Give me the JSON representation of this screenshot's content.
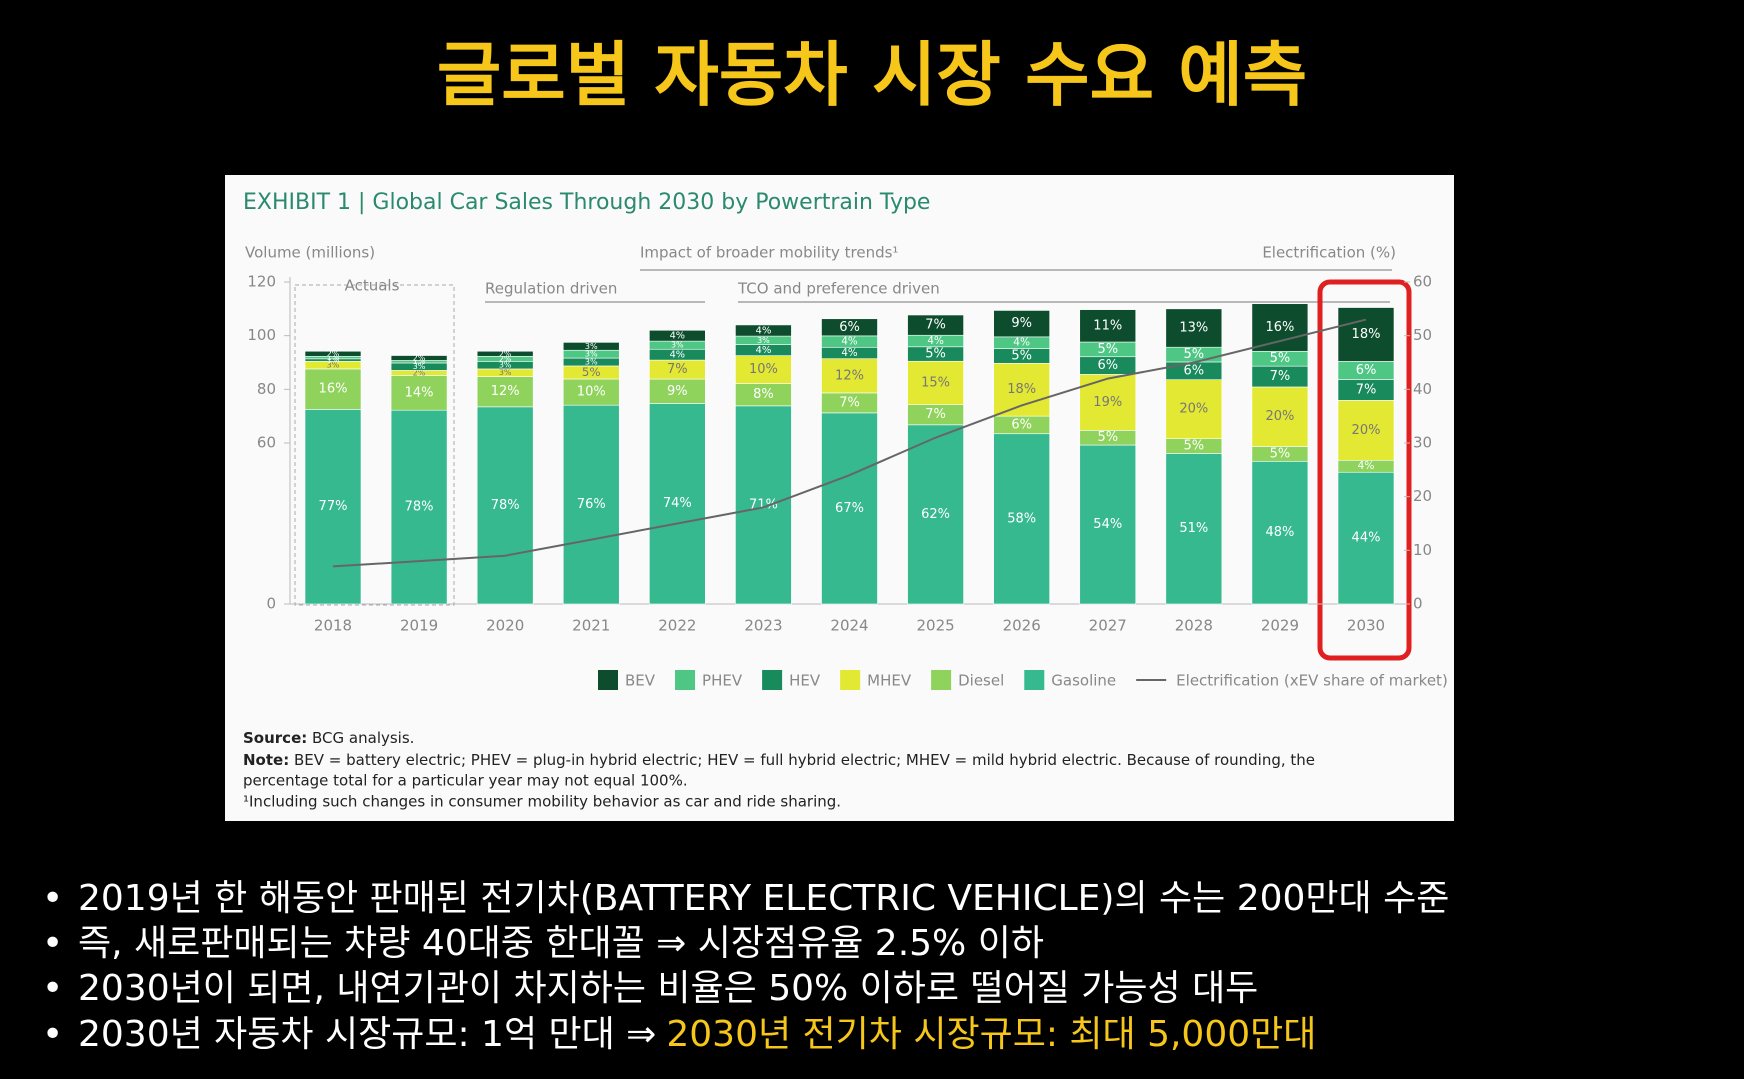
{
  "title": "글로벌 자동차 시장 수요 예측",
  "bullets": [
    "2019년 한 해동안 판매된 전기차(BATTERY ELECTRIC VEHICLE)의 수는 200만대 수준",
    "즉, 새로판매되는 챠량 40대중 한대꼴 ⇒ 시장점유율 2.5% 이하",
    "2030년이 되면, 내연기관이 차지하는 비율은 50% 이하로 떨어질 가능성 대두",
    "2030년 자동차 시장규모: 1억 만대 ⇒",
    "2030년 전기차 시장규모: 최대 5,000만대"
  ],
  "chart_data": {
    "type": "bar",
    "title": "EXHIBIT 1 | Global Car Sales Through 2030 by Powertrain Type",
    "y_label": "Volume (millions)",
    "y2_label": "Electrification (%)",
    "annotations": [
      "Impact of broader mobility trends¹",
      "Actuals",
      "Regulation driven",
      "TCO and preference driven"
    ],
    "categories": [
      "2018",
      "2019",
      "2020",
      "2021",
      "2022",
      "2023",
      "2024",
      "2025",
      "2026",
      "2027",
      "2028",
      "2029",
      "2030"
    ],
    "totals": [
      94.2,
      92.6,
      94.2,
      97.5,
      101,
      104,
      106.3,
      107.7,
      109.4,
      109.7,
      110,
      110.8,
      111.6
    ],
    "series": [
      {
        "name": "BEV",
        "color": "#0d4d2e",
        "values": [
          2,
          2,
          2,
          3,
          4,
          4,
          6,
          7,
          9,
          11,
          13,
          16,
          18
        ],
        "value_labels": [
          "2%",
          "2%",
          "2%",
          "3%",
          "4%",
          "4%",
          "6%",
          "7%",
          "9%",
          "11%",
          "13%",
          "16%",
          "18%"
        ]
      },
      {
        "name": "PHEV",
        "color": "#4ec784",
        "values": [
          1,
          1,
          2,
          3,
          3,
          3,
          4,
          4,
          4,
          5,
          5,
          5,
          6
        ],
        "value_labels": [
          "1%",
          "1%",
          "2%",
          "3%",
          "3%",
          "3%",
          "4%",
          "4%",
          "4%",
          "5%",
          "5%",
          "5%",
          "6%"
        ]
      },
      {
        "name": "HEV",
        "color": "#188a5c",
        "values": [
          1,
          3,
          3,
          3,
          4,
          4,
          4,
          5,
          5,
          6,
          6,
          7,
          7
        ],
        "value_labels": [
          "1%",
          "3%",
          "3%",
          "3%",
          "4%",
          "4%",
          "4%",
          "5%",
          "5%",
          "6%",
          "6%",
          "7%",
          "7%"
        ]
      },
      {
        "name": "MHEV",
        "color": "#e3e833",
        "values": [
          3,
          2,
          3,
          5,
          7,
          10,
          12,
          15,
          18,
          19,
          20,
          20,
          20
        ],
        "value_labels": [
          "3%",
          "2%",
          "3%",
          "5%",
          "7%",
          "10%",
          "12%",
          "15%",
          "18%",
          "19%",
          "20%",
          "20%",
          "20%"
        ]
      },
      {
        "name": "Diesel",
        "color": "#8fd35c",
        "values": [
          16,
          14,
          12,
          10,
          9,
          8,
          7,
          7,
          6,
          5,
          5,
          5,
          4
        ],
        "value_labels": [
          "16%",
          "14%",
          "12%",
          "10%",
          "9%",
          "8%",
          "7%",
          "7%",
          "6%",
          "5%",
          "5%",
          "5%",
          "4%"
        ]
      },
      {
        "name": "Gasoline",
        "color": "#36b98f",
        "values": [
          77,
          78,
          78,
          76,
          74,
          71,
          67,
          62,
          58,
          54,
          51,
          48,
          44
        ],
        "value_labels": [
          "77%",
          "78%",
          "78%",
          "76%",
          "74%",
          "71%",
          "67%",
          "62%",
          "58%",
          "54%",
          "51%",
          "48%",
          "44%"
        ]
      },
      {
        "name": "Electrification (xEV share of market)",
        "type": "line",
        "axis": "y2",
        "color": "#666666",
        "values": [
          7,
          8,
          9,
          12,
          15,
          18,
          24,
          31,
          37,
          42,
          45,
          49,
          53
        ]
      }
    ],
    "ylim": [
      0,
      120
    ],
    "yticks": [
      0,
      60,
      80,
      100,
      120
    ],
    "y2lim": [
      0,
      60
    ],
    "y2ticks": [
      0,
      10,
      20,
      30,
      40,
      50,
      60
    ],
    "source": [
      "Source:",
      "BCG analysis."
    ],
    "notes": [
      "Note:",
      "BEV = battery electric; PHEV = plug-in hybrid electric; HEV = full hybrid electric; MHEV = mild hybrid electric. Because of rounding, the",
      "percentage total for a particular year may not equal 100%.",
      "¹Including such changes in consumer mobility behavior as car and ride sharing."
    ]
  }
}
